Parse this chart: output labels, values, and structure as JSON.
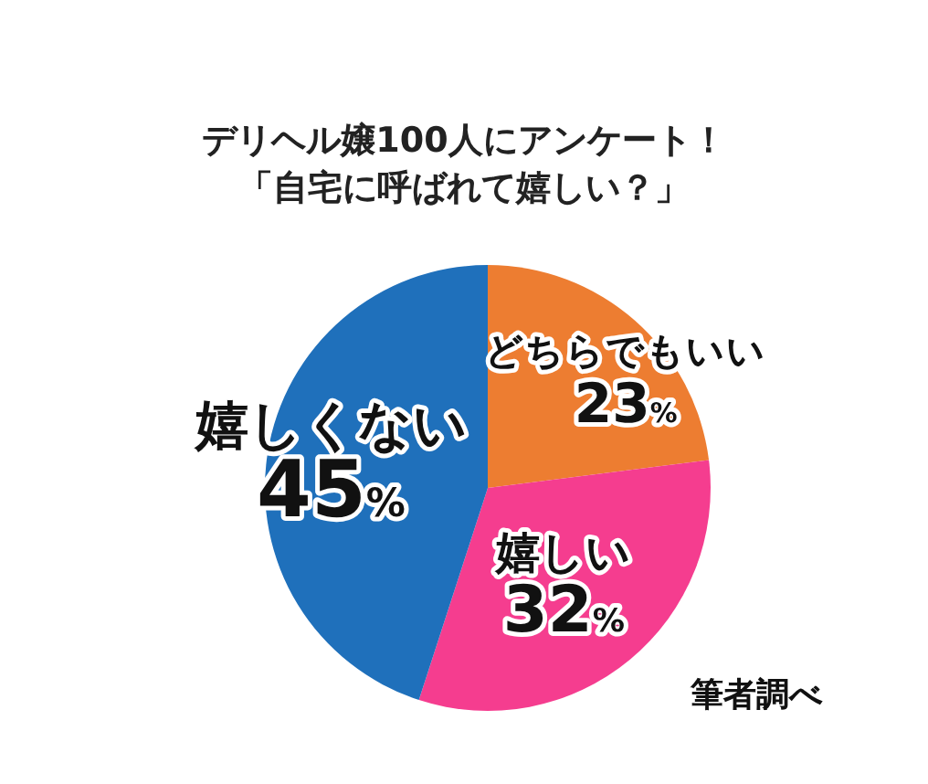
{
  "chart_data": {
    "type": "pie",
    "title": "デリヘル嬢100人にアンケート！",
    "subtitle": "「自宅に呼ばれて嬉しい？」",
    "categories": [
      "どちらでもいい",
      "嬉しい",
      "嬉しくない"
    ],
    "values": [
      23,
      32,
      45
    ],
    "value_labels": [
      "23%",
      "32%",
      "45%"
    ],
    "colors": [
      "#ed7d31",
      "#f53d8f",
      "#1f70bb"
    ],
    "annotations": [
      "筆者調べ"
    ]
  }
}
